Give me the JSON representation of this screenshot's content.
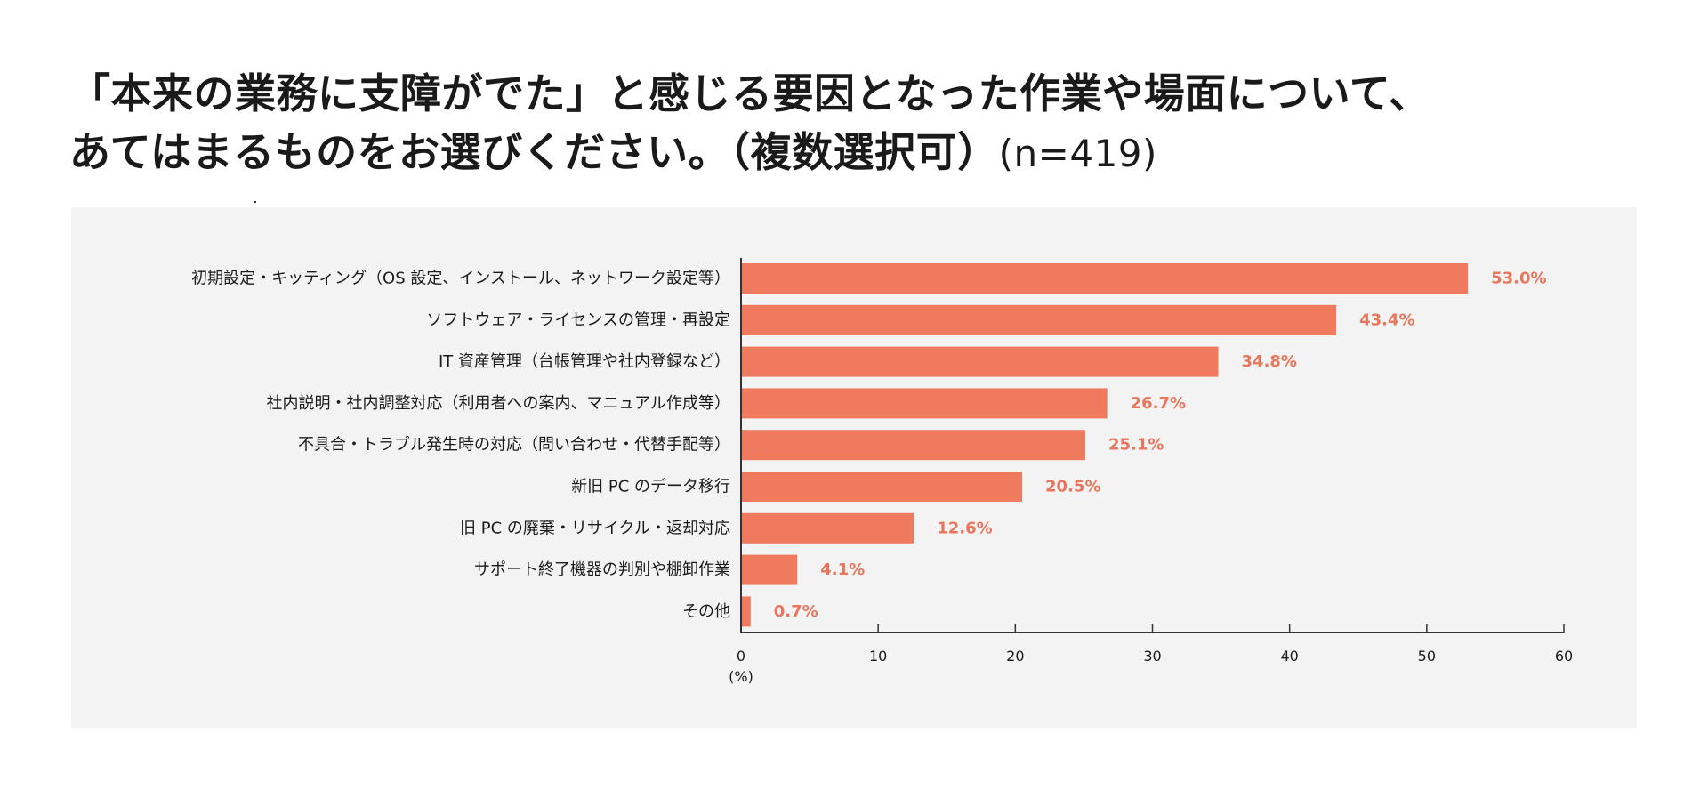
{
  "title": {
    "line1": "「本来の業務に支障がでた」と感じる要因となった作業や場面について、",
    "line2": "あてはまるものをお選びください。（複数選択可）",
    "sample": "(n=419)"
  },
  "colors": {
    "bar": "#f07a5e",
    "value_label": "#e8765c",
    "panel": "#f3f3f3",
    "axis": "#333333"
  },
  "chart_data": {
    "type": "bar",
    "orientation": "horizontal",
    "categories": [
      "初期設定・キッティング（OS 設定、インストール、ネットワーク設定等）",
      "ソフトウェア・ライセンスの管理・再設定",
      "IT 資産管理（台帳管理や社内登録など）",
      "社内説明・社内調整対応（利用者への案内、マニュアル作成等）",
      "不具合・トラブル発生時の対応（問い合わせ・代替手配等）",
      "新旧 PC のデータ移行",
      "旧 PC の廃棄・リサイクル・返却対応",
      "サポート終了機器の判別や棚卸作業",
      "その他"
    ],
    "values": [
      53.0,
      43.4,
      34.8,
      26.7,
      25.1,
      20.5,
      12.6,
      4.1,
      0.7
    ],
    "value_labels": [
      "53.0%",
      "43.4%",
      "34.8%",
      "26.7%",
      "25.1%",
      "20.5%",
      "12.6%",
      "4.1%",
      "0.7%"
    ],
    "xlim": [
      0,
      60
    ],
    "xticks": [
      0,
      10,
      20,
      30,
      40,
      50,
      60
    ],
    "xticklabels": [
      "0",
      "10",
      "20",
      "30",
      "40",
      "50",
      "60"
    ],
    "xunit": "(%)",
    "grid": false,
    "legend": "none"
  }
}
